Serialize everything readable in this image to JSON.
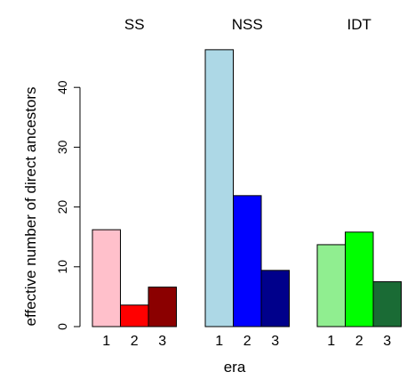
{
  "chart_data": {
    "type": "bar",
    "xlabel": "era",
    "ylabel": "effective number of direct ancestors",
    "ylim": [
      0,
      47
    ],
    "yticks": [
      0,
      10,
      20,
      30,
      40
    ],
    "grid": false,
    "groups": [
      {
        "name": "SS",
        "categories": [
          "1",
          "2",
          "3"
        ],
        "values": [
          16.2,
          3.6,
          6.6
        ],
        "colors": [
          "#ffc0cb",
          "#ff0000",
          "#8b0000"
        ]
      },
      {
        "name": "NSS",
        "categories": [
          "1",
          "2",
          "3"
        ],
        "values": [
          46.3,
          21.9,
          9.4
        ],
        "colors": [
          "#add8e6",
          "#0000ff",
          "#00008b"
        ]
      },
      {
        "name": "IDT",
        "categories": [
          "1",
          "2",
          "3"
        ],
        "values": [
          13.7,
          15.8,
          7.5
        ],
        "colors": [
          "#90ee90",
          "#00ff00",
          "#1a6b35"
        ]
      }
    ]
  }
}
